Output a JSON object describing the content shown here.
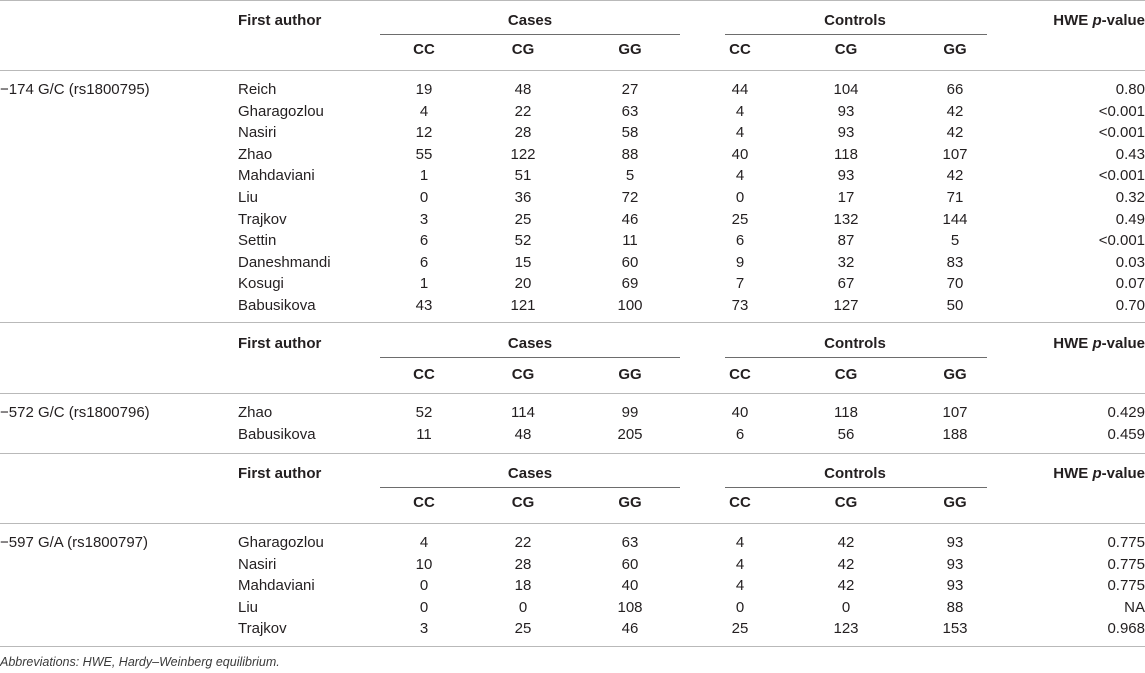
{
  "header": {
    "first_author": "First author",
    "cases": "Cases",
    "controls": "Controls",
    "hwe_prefix": "HWE ",
    "hwe_p": "p",
    "hwe_suffix": "-value",
    "genotypes": [
      "CC",
      "CG",
      "GG",
      "CC",
      "CG",
      "GG"
    ]
  },
  "sections": [
    {
      "snp": "−174 G/C (rs1800795)",
      "rows": [
        {
          "author": "Reich",
          "values": [
            "19",
            "48",
            "27",
            "44",
            "104",
            "66"
          ],
          "hwe": "0.80"
        },
        {
          "author": "Gharagozlou",
          "values": [
            "4",
            "22",
            "63",
            "4",
            "93",
            "42"
          ],
          "hwe": "<0.001"
        },
        {
          "author": "Nasiri",
          "values": [
            "12",
            "28",
            "58",
            "4",
            "93",
            "42"
          ],
          "hwe": "<0.001"
        },
        {
          "author": "Zhao",
          "values": [
            "55",
            "122",
            "88",
            "40",
            "118",
            "107"
          ],
          "hwe": "0.43"
        },
        {
          "author": "Mahdaviani",
          "values": [
            "1",
            "51",
            "5",
            "4",
            "93",
            "42"
          ],
          "hwe": "<0.001"
        },
        {
          "author": "Liu",
          "values": [
            "0",
            "36",
            "72",
            "0",
            "17",
            "71"
          ],
          "hwe": "0.32"
        },
        {
          "author": "Trajkov",
          "values": [
            "3",
            "25",
            "46",
            "25",
            "132",
            "144"
          ],
          "hwe": "0.49"
        },
        {
          "author": "Settin",
          "values": [
            "6",
            "52",
            "11",
            "6",
            "87",
            "5"
          ],
          "hwe": "<0.001"
        },
        {
          "author": "Daneshmandi",
          "values": [
            "6",
            "15",
            "60",
            "9",
            "32",
            "83"
          ],
          "hwe": "0.03"
        },
        {
          "author": "Kosugi",
          "values": [
            "1",
            "20",
            "69",
            "7",
            "67",
            "70"
          ],
          "hwe": "0.07"
        },
        {
          "author": "Babusikova",
          "values": [
            "43",
            "121",
            "100",
            "73",
            "127",
            "50"
          ],
          "hwe": "0.70"
        }
      ]
    },
    {
      "snp": "−572 G/C (rs1800796)",
      "rows": [
        {
          "author": "Zhao",
          "values": [
            "52",
            "114",
            "99",
            "40",
            "118",
            "107"
          ],
          "hwe": "0.429"
        },
        {
          "author": "Babusikova",
          "values": [
            "11",
            "48",
            "205",
            "6",
            "56",
            "188"
          ],
          "hwe": "0.459"
        }
      ]
    },
    {
      "snp": "−597 G/A (rs1800797)",
      "rows": [
        {
          "author": "Gharagozlou",
          "values": [
            "4",
            "22",
            "63",
            "4",
            "42",
            "93"
          ],
          "hwe": "0.775"
        },
        {
          "author": "Nasiri",
          "values": [
            "10",
            "28",
            "60",
            "4",
            "42",
            "93"
          ],
          "hwe": "0.775"
        },
        {
          "author": "Mahdaviani",
          "values": [
            "0",
            "18",
            "40",
            "4",
            "42",
            "93"
          ],
          "hwe": "0.775"
        },
        {
          "author": "Liu",
          "values": [
            "0",
            "0",
            "108",
            "0",
            "0",
            "88"
          ],
          "hwe": "NA"
        },
        {
          "author": "Trajkov",
          "values": [
            "3",
            "25",
            "46",
            "25",
            "123",
            "153"
          ],
          "hwe": "0.968"
        }
      ]
    }
  ],
  "footnote": "Abbreviations: HWE, Hardy–Weinberg equilibrium."
}
